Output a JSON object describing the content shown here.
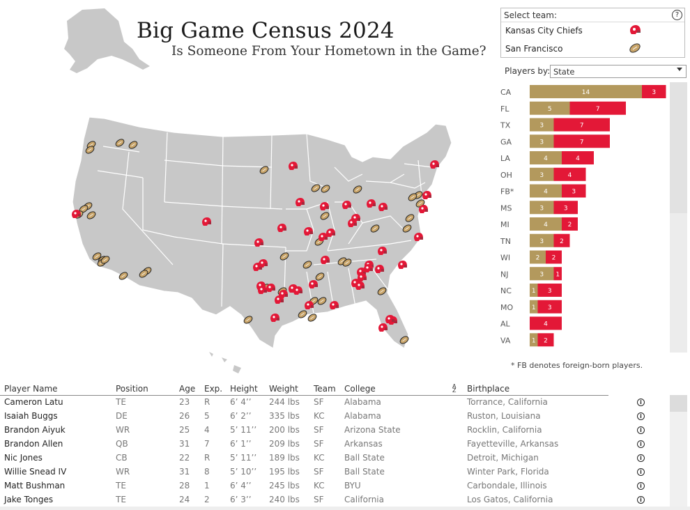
{
  "title": "Big Game Census 2024",
  "subtitle": "Is Someone From Your Hometown in the Game?",
  "team_filter": {
    "label": "Select team:",
    "help_icon": "question-icon",
    "teams": [
      {
        "name": "Kansas City Chiefs",
        "icon": "chiefs-helmet-icon",
        "color": "#e31837"
      },
      {
        "name": "San Francisco",
        "icon": "football-icon",
        "color": "#b3995d"
      }
    ]
  },
  "players_by": {
    "label": "Players by:",
    "value": "State"
  },
  "footnote": "* FB denotes foreign-born players.",
  "colors": {
    "sf": "#b3995d",
    "kc": "#e31837",
    "map_fill": "#c8c8c8",
    "map_stroke": "#ffffff"
  },
  "chart_data": [
    {
      "type": "bar",
      "orientation": "horizontal",
      "stacked": true,
      "categories": [
        "CA",
        "FL",
        "TX",
        "GA",
        "LA",
        "OH",
        "FB*",
        "MS",
        "MI",
        "TN",
        "WI",
        "NJ",
        "NC",
        "MO",
        "AL",
        "VA"
      ],
      "series": [
        {
          "name": "San Francisco",
          "values": [
            14,
            5,
            3,
            3,
            4,
            3,
            4,
            3,
            4,
            3,
            2,
            3,
            1,
            1,
            0,
            1
          ]
        },
        {
          "name": "Kansas City Chiefs",
          "values": [
            3,
            7,
            7,
            7,
            4,
            4,
            3,
            3,
            2,
            2,
            2,
            1,
            3,
            3,
            4,
            2
          ]
        }
      ]
    },
    {
      "type": "scatter",
      "x_unit": "map-x",
      "y_unit": "map-y",
      "series": [
        {
          "name": "San Francisco",
          "points": [
            [
              131,
              208
            ],
            [
              129,
              215
            ],
            [
              172,
              205
            ],
            [
              191,
              208
            ],
            [
              126,
              296
            ],
            [
              120,
              300
            ],
            [
              113,
              308
            ],
            [
              131,
              309
            ],
            [
              139,
              368
            ],
            [
              147,
              373
            ],
            [
              146,
              377
            ],
            [
              151,
              373
            ],
            [
              177,
              396
            ],
            [
              211,
              389
            ],
            [
              206,
              393
            ],
            [
              379,
              244
            ],
            [
              453,
              270
            ],
            [
              467,
              271
            ],
            [
              466,
              310
            ],
            [
              458,
              347
            ],
            [
              408,
              368
            ],
            [
              441,
              380
            ],
            [
              491,
              375
            ],
            [
              459,
              397
            ],
            [
              405,
              418
            ],
            [
              450,
              432
            ],
            [
              462,
              432
            ],
            [
              434,
              451
            ],
            [
              448,
              456
            ],
            [
              356,
              459
            ],
            [
              381,
              413
            ],
            [
              498,
              377
            ],
            [
              513,
              272
            ],
            [
              538,
              328
            ],
            [
              548,
              418
            ],
            [
              584,
              328
            ],
            [
              580,
              488
            ],
            [
              588,
              313
            ],
            [
              603,
              292
            ],
            [
              600,
              280
            ],
            [
              592,
              283
            ]
          ]
        },
        {
          "name": "Kansas City Chiefs",
          "points": [
            [
              296,
              318
            ],
            [
              109,
              307
            ],
            [
              420,
              238
            ],
            [
              549,
              297
            ],
            [
              371,
              348
            ],
            [
              377,
              378
            ],
            [
              369,
              383
            ],
            [
              374,
              410
            ],
            [
              376,
              416
            ],
            [
              388,
              413
            ],
            [
              406,
              422
            ],
            [
              420,
              414
            ],
            [
              427,
              417
            ],
            [
              400,
              430
            ],
            [
              394,
              456
            ],
            [
              479,
              438
            ],
            [
              443,
              438
            ],
            [
              463,
              340
            ],
            [
              474,
              334
            ],
            [
              497,
              294
            ],
            [
              505,
              320
            ],
            [
              510,
              313
            ],
            [
              529,
              380
            ],
            [
              518,
              390
            ],
            [
              519,
              398
            ],
            [
              510,
              406
            ],
            [
              528,
              385
            ],
            [
              548,
              360
            ],
            [
              563,
              460
            ],
            [
              559,
              458
            ],
            [
              549,
              470
            ],
            [
              600,
              340
            ],
            [
              577,
              380
            ],
            [
              612,
              280
            ],
            [
              607,
              300
            ],
            [
              623,
              236
            ],
            [
              532,
              292
            ],
            [
              465,
              296
            ],
            [
              430,
              290
            ],
            [
              404,
              327
            ],
            [
              442,
              332
            ],
            [
              466,
              373
            ],
            [
              449,
              408
            ],
            [
              544,
              386
            ],
            [
              516,
              410
            ]
          ]
        }
      ]
    }
  ],
  "table": {
    "columns": [
      "Player Name",
      "Position",
      "Age",
      "Exp.",
      "Height",
      "Weight",
      "Team",
      "College",
      "Birthplace"
    ],
    "sort_icon": "sort-az-icon",
    "rows": [
      [
        "Cameron Latu",
        "TE",
        "23",
        "R",
        "6’ 4’’",
        "244 lbs",
        "SF",
        "Alabama",
        "Torrance, California"
      ],
      [
        "Isaiah Buggs",
        "DE",
        "26",
        "5",
        "6’ 2’’",
        "335 lbs",
        "KC",
        "Alabama",
        "Ruston, Louisiana"
      ],
      [
        "Brandon Aiyuk",
        "WR",
        "25",
        "4",
        "5’ 11’’",
        "200 lbs",
        "SF",
        "Arizona State",
        "Rocklin, California"
      ],
      [
        "Brandon Allen",
        "QB",
        "31",
        "7",
        "6’ 1’’",
        "209 lbs",
        "SF",
        "Arkansas",
        "Fayetteville, Arkansas"
      ],
      [
        "Nic Jones",
        "CB",
        "22",
        "R",
        "5’ 11’’",
        "189 lbs",
        "KC",
        "Ball State",
        "Detroit, Michigan"
      ],
      [
        "Willie Snead IV",
        "WR",
        "31",
        "8",
        "5’ 10’’",
        "195 lbs",
        "SF",
        "Ball State",
        "Winter Park, Florida"
      ],
      [
        "Matt Bushman",
        "TE",
        "28",
        "1",
        "6’ 4’’",
        "245 lbs",
        "KC",
        "BYU",
        "Carbondale, Illinois"
      ],
      [
        "Jake Tonges",
        "TE",
        "24",
        "2",
        "6’ 3’’",
        "240 lbs",
        "SF",
        "California",
        "Los Gatos, California"
      ]
    ]
  }
}
